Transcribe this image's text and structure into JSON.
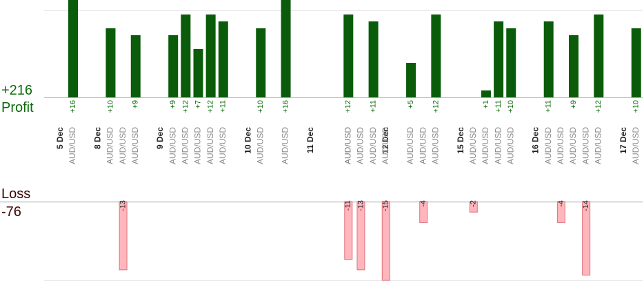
{
  "summary": {
    "profit_total": "+216",
    "profit_label": "Profit",
    "loss_label": "Loss",
    "loss_total": "-76"
  },
  "colors": {
    "profit_bar": "#0a5c0a",
    "profit_text": "#0a6b0a",
    "loss_fill": "#ffb6bc",
    "loss_stroke": "#e0707a",
    "date_text": "#222222",
    "pair_text": "#8a8a8a",
    "grid": "#e6e6e6",
    "axis": "#bbbbbb"
  },
  "chart_data": {
    "type": "bar",
    "instrument": "AUD/USD",
    "date_labels": [
      "5 Dec",
      "8 Dec",
      "9 Dec",
      "10 Dec",
      "11 Dec",
      "12 Dec",
      "15 Dec",
      "16 Dec",
      "17 Dec"
    ],
    "trades": [
      {
        "date": "5 Dec",
        "pips": 16,
        "label": "+16"
      },
      {
        "date": "5 Dec",
        "pips": -13,
        "label": "-13"
      },
      {
        "date": "8 Dec",
        "pips": 10,
        "label": "+10"
      },
      {
        "date": "8 Dec",
        "pips": 9,
        "label": "+9"
      },
      {
        "date": "9 Dec",
        "pips": 9,
        "label": "+9"
      },
      {
        "date": "9 Dec",
        "pips": 12,
        "label": "+12"
      },
      {
        "date": "9 Dec",
        "pips": 7,
        "label": "+7"
      },
      {
        "date": "9 Dec",
        "pips": 12,
        "label": "+12"
      },
      {
        "date": "9 Dec",
        "pips": 11,
        "label": "+11"
      },
      {
        "date": "10 Dec",
        "pips": 10,
        "label": "+10"
      },
      {
        "date": "10 Dec",
        "pips": 16,
        "label": "+16"
      },
      {
        "date": "11 Dec",
        "pips": -11,
        "label": "-11"
      },
      {
        "date": "11 Dec",
        "pips": -13,
        "label": "-13"
      },
      {
        "date": "11 Dec",
        "pips": 12,
        "label": "+12"
      },
      {
        "date": "11 Dec",
        "pips": -15,
        "label": "-15"
      },
      {
        "date": "11 Dec",
        "pips": 11,
        "label": "+11"
      },
      {
        "date": "12 Dec",
        "pips": 5,
        "label": "+5"
      },
      {
        "date": "12 Dec",
        "pips": -4,
        "label": "-4"
      },
      {
        "date": "12 Dec",
        "pips": 12,
        "label": "+12"
      },
      {
        "date": "15 Dec",
        "pips": -2,
        "label": "-2"
      },
      {
        "date": "15 Dec",
        "pips": 1,
        "label": "+1"
      },
      {
        "date": "15 Dec",
        "pips": 11,
        "label": "+11"
      },
      {
        "date": "15 Dec",
        "pips": 10,
        "label": "+10"
      },
      {
        "date": "16 Dec",
        "pips": 11,
        "label": "+11"
      },
      {
        "date": "16 Dec",
        "pips": -4,
        "label": "-4"
      },
      {
        "date": "16 Dec",
        "pips": 9,
        "label": "+9"
      },
      {
        "date": "16 Dec",
        "pips": -14,
        "label": "-14"
      },
      {
        "date": "16 Dec",
        "pips": 12,
        "label": "+12"
      },
      {
        "date": "17 Dec",
        "pips": 10,
        "label": "+10"
      }
    ]
  }
}
